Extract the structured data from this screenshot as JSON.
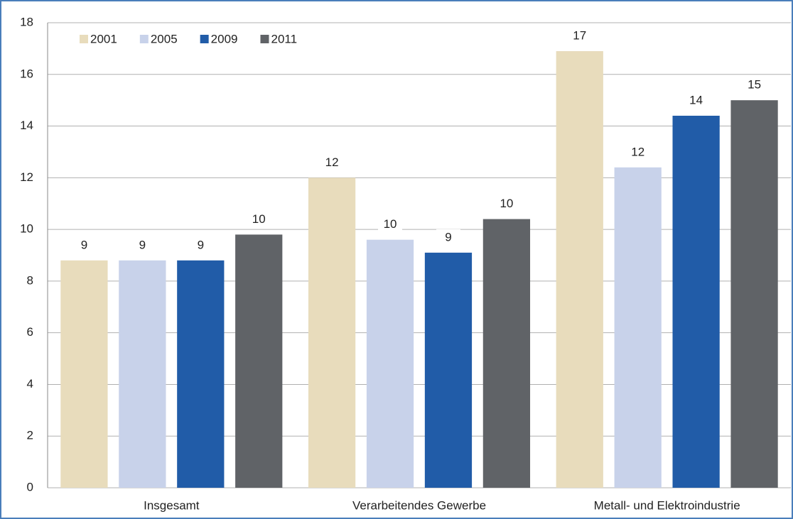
{
  "chart_data": {
    "type": "bar",
    "categories": [
      "Insgesamt",
      "Verarbeitendes Gewerbe",
      "Metall- und Elektroindustrie"
    ],
    "series": [
      {
        "name": "2001",
        "color": "#e8dcbc",
        "values": [
          8.8,
          12.0,
          16.9
        ],
        "value_labels": [
          "9",
          "12",
          "17"
        ]
      },
      {
        "name": "2005",
        "color": "#c8d2ea",
        "values": [
          8.8,
          9.6,
          12.4
        ],
        "value_labels": [
          "9",
          "10",
          "12"
        ]
      },
      {
        "name": "2009",
        "color": "#215ca8",
        "values": [
          8.8,
          9.1,
          14.4
        ],
        "value_labels": [
          "9",
          "9",
          "14"
        ]
      },
      {
        "name": "2011",
        "color": "#606367",
        "values": [
          9.8,
          10.4,
          15.0
        ],
        "value_labels": [
          "10",
          "10",
          "15"
        ]
      }
    ],
    "ylim": [
      0,
      18
    ],
    "yticks": [
      0,
      2,
      4,
      6,
      8,
      10,
      12,
      14,
      16,
      18
    ],
    "grid": true,
    "legend": "top-left"
  }
}
